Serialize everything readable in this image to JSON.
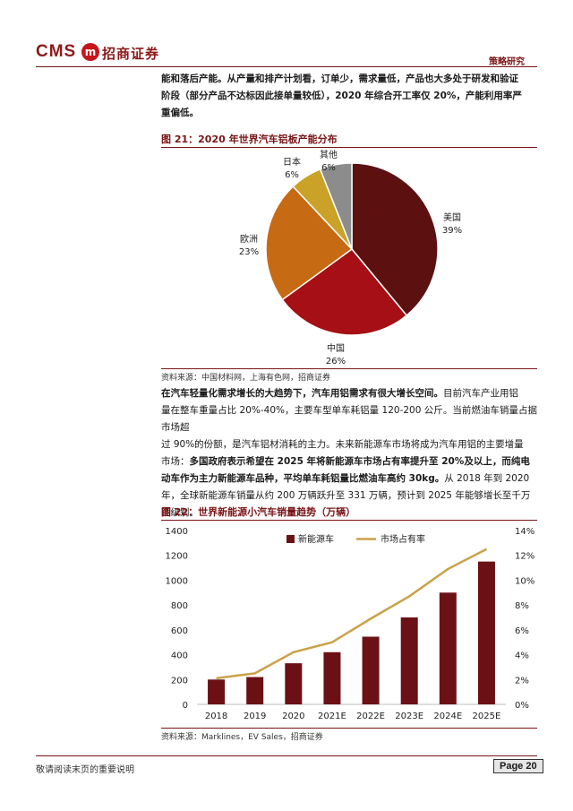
{
  "header": {
    "logo_latin": "CMS",
    "logo_mark": "m",
    "logo_cn": "招商证券",
    "section": "策略研究"
  },
  "intro_paragraph": {
    "lines": [
      "能和落后产能。从产量和排产计划看，订单少，需求量低，产品也大多处于研发和验证",
      "阶段（部分产品不达标因此接单量较低），2020 年综合开工率仅 20%，产能利用率严",
      "重偏低。"
    ]
  },
  "figure21": {
    "title": "图 21：2020 年世界汽车铝板产能分布",
    "source": "资料来源：中国材料网，上海有色网，招商证券",
    "chart_data": {
      "type": "pie",
      "title": "",
      "slices": [
        {
          "label": "美国",
          "value": 39,
          "display": "39%",
          "color": "#5c1010"
        },
        {
          "label": "中国",
          "value": 26,
          "display": "26%",
          "color": "#a50f15"
        },
        {
          "label": "欧洲",
          "value": 23,
          "display": "23%",
          "color": "#c76a14"
        },
        {
          "label": "日本",
          "value": 6,
          "display": "6%",
          "color": "#c9a227"
        },
        {
          "label": "其他",
          "value": 6,
          "display": "6%",
          "color": "#8c8c8c"
        }
      ]
    }
  },
  "body_paragraph": {
    "lines": [
      [
        {
          "t": "在汽车轻量化需求增长的大趋势下，汽车用铝需求有很大增长空间。",
          "b": true
        },
        {
          "t": "目前汽车产业用铝",
          "b": false
        }
      ],
      [
        {
          "t": "量在整车重量占比 20%-40%，主要车型单车耗铝量 120-200 公斤。当前燃油车销量占据市场超",
          "b": false
        }
      ],
      [
        {
          "t": "过 90%的份额，是汽车铝材消耗的主力。未来新能源车市场将成为汽车用铝的主要增量",
          "b": false
        }
      ],
      [
        {
          "t": "市场：",
          "b": false
        },
        {
          "t": "多国政府表示希望在 2025 年将新能源车市场占有率提升至 20%及以上，而纯电",
          "b": true
        }
      ],
      [
        {
          "t": "动车作为主力新能源车品种，平均单车耗铝量比燃油车高约 30kg。",
          "b": true
        },
        {
          "t": "从 2018 年到 2020",
          "b": false
        }
      ],
      [
        {
          "t": "年，全球新能源车销量从约 200 万辆跃升至 331 万辆，预计到 2025 年能够增长至千万",
          "b": false
        }
      ],
      [
        {
          "t": "辆级别。",
          "b": false
        }
      ]
    ]
  },
  "figure22": {
    "title": "图 22：世界新能源小汽车销量趋势（万辆）",
    "source": "资料来源：Marklines，EV Sales，招商证券",
    "chart_data": {
      "type": "bar",
      "categories": [
        "2018",
        "2019",
        "2020",
        "2021E",
        "2022E",
        "2023E",
        "2024E",
        "2025E"
      ],
      "series": [
        {
          "name": "新能源车",
          "type": "bar",
          "axis": "left",
          "color": "#6b1116",
          "values": [
            200,
            220,
            331,
            420,
            545,
            700,
            900,
            1150
          ]
        },
        {
          "name": "市场占有率",
          "type": "line",
          "axis": "right",
          "color": "#c9a24a",
          "values": [
            2.1,
            2.5,
            4.2,
            5.0,
            6.9,
            8.7,
            10.9,
            12.5
          ]
        }
      ],
      "ylim_left": [
        0,
        1400
      ],
      "left_ticks": [
        "0",
        "200",
        "400",
        "600",
        "800",
        "1000",
        "1200",
        "1400"
      ],
      "ylim_right": [
        0,
        14
      ],
      "right_ticks": [
        "0%",
        "2%",
        "4%",
        "6%",
        "8%",
        "10%",
        "12%",
        "14%"
      ],
      "legend_position": "top-center",
      "grid": false
    }
  },
  "footer": {
    "note": "敬请阅读末页的重要说明",
    "page_label": "Page 20"
  }
}
